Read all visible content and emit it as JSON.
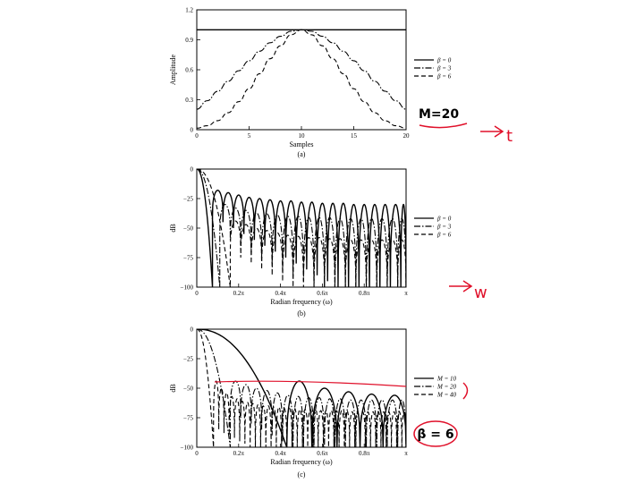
{
  "chart_data": [
    {
      "type": "line",
      "caption": "(a)",
      "xlabel": "Samples",
      "ylabel": "Amplitude",
      "xlim": [
        0,
        20
      ],
      "ylim": [
        0,
        1.2
      ],
      "xticks": [
        "0",
        "5",
        "10",
        "15",
        "20"
      ],
      "yticks": [
        "0",
        "0.3",
        "0.6",
        "0.9",
        "1.2"
      ],
      "legend_position": "right",
      "series": [
        {
          "name": "β = 0",
          "style": "solid",
          "x": [
            0,
            1,
            2,
            3,
            4,
            5,
            6,
            7,
            8,
            9,
            10,
            11,
            12,
            13,
            14,
            15,
            16,
            17,
            18,
            19,
            20
          ],
          "y": [
            1,
            1,
            1,
            1,
            1,
            1,
            1,
            1,
            1,
            1,
            1,
            1,
            1,
            1,
            1,
            1,
            1,
            1,
            1,
            1,
            1
          ]
        },
        {
          "name": "β = 3",
          "style": "dashdot",
          "x": [
            0,
            1,
            2,
            3,
            4,
            5,
            6,
            7,
            8,
            9,
            10,
            11,
            12,
            13,
            14,
            15,
            16,
            17,
            18,
            19,
            20
          ],
          "y": [
            0.205,
            0.29,
            0.385,
            0.485,
            0.59,
            0.69,
            0.785,
            0.87,
            0.935,
            0.985,
            1,
            0.985,
            0.935,
            0.87,
            0.785,
            0.69,
            0.59,
            0.485,
            0.385,
            0.29,
            0.205
          ]
        },
        {
          "name": "β = 6",
          "style": "dashed",
          "x": [
            0,
            1,
            2,
            3,
            4,
            5,
            6,
            7,
            8,
            9,
            10,
            11,
            12,
            13,
            14,
            15,
            16,
            17,
            18,
            19,
            20
          ],
          "y": [
            0.015,
            0.04,
            0.09,
            0.17,
            0.28,
            0.41,
            0.56,
            0.71,
            0.84,
            0.95,
            1,
            0.95,
            0.84,
            0.71,
            0.56,
            0.41,
            0.28,
            0.17,
            0.09,
            0.04,
            0.015
          ]
        }
      ]
    },
    {
      "type": "line",
      "caption": "(b)",
      "xlabel": "Radian frequency (ω)",
      "ylabel": "dB",
      "xlim": [
        0,
        1
      ],
      "ylim": [
        -100,
        0
      ],
      "xticks": [
        "0",
        "0.2π",
        "0.4π",
        "0.6π",
        "0.8π",
        "π"
      ],
      "yticks": [
        "0",
        "−25",
        "−50",
        "−75",
        "−100"
      ],
      "legend_position": "right",
      "series": [
        {
          "name": "β = 0",
          "style": "solid",
          "lobes": [
            [
              0,
              0.075,
              -100,
              -100
            ],
            [
              0.075,
              0.125,
              -18,
              -40
            ],
            [
              0.125,
              0.175,
              -20,
              -45
            ],
            [
              0.175,
              0.225,
              -22,
              -50
            ],
            [
              0.225,
              0.275,
              -24,
              -55
            ],
            [
              0.275,
              0.325,
              -25,
              -60
            ],
            [
              0.325,
              0.375,
              -26,
              -65
            ],
            [
              0.375,
              0.425,
              -27,
              -70
            ],
            [
              0.425,
              0.475,
              -27,
              -75
            ],
            [
              0.475,
              0.525,
              -28,
              -80
            ],
            [
              0.525,
              0.575,
              -28,
              -85
            ],
            [
              0.575,
              0.625,
              -29,
              -90
            ],
            [
              0.625,
              0.675,
              -29,
              -95
            ],
            [
              0.675,
              0.725,
              -29,
              -100
            ],
            [
              0.725,
              0.775,
              -30,
              -100
            ],
            [
              0.775,
              0.825,
              -30,
              -100
            ],
            [
              0.825,
              0.875,
              -30,
              -100
            ],
            [
              0.875,
              0.925,
              -30,
              -100
            ],
            [
              0.925,
              0.975,
              -30,
              -100
            ],
            [
              0.975,
              1,
              -30,
              -100
            ]
          ],
          "main_to": 0.075
        },
        {
          "name": "β = 3",
          "style": "dashdot",
          "lobes": [
            [
              0,
              0.11,
              -100,
              -100
            ],
            [
              0.11,
              0.16,
              -30,
              -55
            ],
            [
              0.16,
              0.21,
              -33,
              -60
            ],
            [
              0.21,
              0.26,
              -35,
              -65
            ],
            [
              0.26,
              0.31,
              -37,
              -70
            ],
            [
              0.31,
              0.36,
              -38,
              -75
            ],
            [
              0.36,
              0.41,
              -39,
              -80
            ],
            [
              0.41,
              0.46,
              -40,
              -85
            ],
            [
              0.46,
              0.51,
              -40,
              -90
            ],
            [
              0.51,
              0.56,
              -41,
              -95
            ],
            [
              0.56,
              0.61,
              -41,
              -100
            ],
            [
              0.61,
              0.66,
              -41,
              -100
            ],
            [
              0.66,
              0.71,
              -42,
              -100
            ],
            [
              0.71,
              0.76,
              -42,
              -100
            ],
            [
              0.76,
              0.81,
              -42,
              -100
            ],
            [
              0.81,
              0.86,
              -42,
              -100
            ],
            [
              0.86,
              0.91,
              -42,
              -100
            ],
            [
              0.91,
              0.96,
              -42,
              -100
            ],
            [
              0.96,
              1,
              -42,
              -100
            ]
          ],
          "main_to": 0.11
        },
        {
          "name": "β = 6",
          "style": "dashed",
          "lobes": [
            [
              0,
              0.16,
              -100,
              -100
            ],
            [
              0.16,
              0.21,
              -44,
              -70
            ],
            [
              0.21,
              0.26,
              -47,
              -75
            ],
            [
              0.26,
              0.31,
              -50,
              -80
            ],
            [
              0.31,
              0.36,
              -52,
              -85
            ],
            [
              0.36,
              0.41,
              -54,
              -90
            ],
            [
              0.41,
              0.46,
              -56,
              -95
            ],
            [
              0.46,
              0.51,
              -57,
              -100
            ],
            [
              0.51,
              0.56,
              -58,
              -100
            ],
            [
              0.56,
              0.61,
              -58,
              -100
            ],
            [
              0.61,
              0.66,
              -59,
              -100
            ],
            [
              0.66,
              0.71,
              -59,
              -100
            ],
            [
              0.71,
              0.76,
              -60,
              -100
            ],
            [
              0.76,
              0.81,
              -60,
              -100
            ],
            [
              0.81,
              0.86,
              -60,
              -100
            ],
            [
              0.86,
              0.91,
              -60,
              -100
            ],
            [
              0.91,
              0.96,
              -60,
              -100
            ],
            [
              0.96,
              1,
              -60,
              -100
            ]
          ],
          "main_to": 0.16
        }
      ]
    },
    {
      "type": "line",
      "caption": "(c)",
      "xlabel": "Radian frequency (ω)",
      "ylabel": "dB",
      "xlim": [
        0,
        1
      ],
      "ylim": [
        -100,
        0
      ],
      "xticks": [
        "0",
        "0.2π",
        "0.4π",
        "0.6π",
        "0.8π",
        "π"
      ],
      "yticks": [
        "0",
        "−25",
        "−50",
        "−75",
        "−100"
      ],
      "legend_position": "right",
      "series": [
        {
          "name": "M = 10",
          "style": "solid",
          "lobes": [
            [
              0,
              0.43,
              -100,
              -100
            ],
            [
              0.43,
              0.55,
              -44,
              -100
            ],
            [
              0.55,
              0.67,
              -50,
              -100
            ],
            [
              0.67,
              0.78,
              -53,
              -100
            ],
            [
              0.78,
              0.89,
              -55,
              -100
            ],
            [
              0.89,
              1,
              -56,
              -100
            ]
          ],
          "main_to": 0.43
        },
        {
          "name": "M = 20",
          "style": "dashdot",
          "lobes": [
            [
              0,
              0.16,
              -100,
              -100
            ],
            [
              0.16,
              0.21,
              -44,
              -70
            ],
            [
              0.21,
              0.26,
              -47,
              -75
            ],
            [
              0.26,
              0.31,
              -50,
              -80
            ],
            [
              0.31,
              0.36,
              -52,
              -85
            ],
            [
              0.36,
              0.41,
              -54,
              -90
            ],
            [
              0.41,
              0.46,
              -56,
              -95
            ],
            [
              0.46,
              0.51,
              -57,
              -100
            ],
            [
              0.51,
              0.56,
              -58,
              -100
            ],
            [
              0.56,
              0.61,
              -58,
              -100
            ],
            [
              0.61,
              0.66,
              -59,
              -100
            ],
            [
              0.66,
              0.71,
              -59,
              -100
            ],
            [
              0.71,
              0.76,
              -60,
              -100
            ],
            [
              0.76,
              0.81,
              -60,
              -100
            ],
            [
              0.81,
              0.86,
              -60,
              -100
            ],
            [
              0.86,
              0.91,
              -60,
              -100
            ],
            [
              0.91,
              0.96,
              -60,
              -100
            ],
            [
              0.96,
              1,
              -60,
              -100
            ]
          ],
          "main_to": 0.16
        },
        {
          "name": "M = 40",
          "style": "dashed",
          "lobes": [
            [
              0,
              0.08,
              -100,
              -100
            ],
            [
              0.08,
              0.105,
              -44,
              -80
            ],
            [
              0.105,
              0.13,
              -50,
              -85
            ],
            [
              0.13,
              0.155,
              -54,
              -88
            ],
            [
              0.155,
              0.18,
              -57,
              -90
            ],
            [
              0.18,
              0.205,
              -59,
              -92
            ],
            [
              0.205,
              0.23,
              -61,
              -95
            ],
            [
              0.23,
              0.255,
              -62,
              -97
            ],
            [
              0.255,
              0.28,
              -63,
              -100
            ],
            [
              0.28,
              0.305,
              -64,
              -100
            ],
            [
              0.305,
              0.33,
              -65,
              -100
            ],
            [
              0.33,
              0.355,
              -65,
              -100
            ],
            [
              0.355,
              0.38,
              -66,
              -100
            ],
            [
              0.38,
              0.405,
              -66,
              -100
            ],
            [
              0.405,
              0.43,
              -67,
              -100
            ],
            [
              0.43,
              0.455,
              -67,
              -100
            ],
            [
              0.455,
              0.48,
              -67,
              -100
            ],
            [
              0.48,
              0.505,
              -68,
              -100
            ],
            [
              0.505,
              0.53,
              -68,
              -100
            ],
            [
              0.53,
              0.555,
              -68,
              -100
            ],
            [
              0.555,
              0.58,
              -68,
              -100
            ],
            [
              0.58,
              0.605,
              -69,
              -100
            ],
            [
              0.605,
              0.63,
              -69,
              -100
            ],
            [
              0.63,
              0.655,
              -69,
              -100
            ],
            [
              0.655,
              0.68,
              -69,
              -100
            ],
            [
              0.68,
              0.705,
              -69,
              -100
            ],
            [
              0.705,
              0.73,
              -69,
              -100
            ],
            [
              0.73,
              0.755,
              -70,
              -100
            ],
            [
              0.755,
              0.78,
              -70,
              -100
            ],
            [
              0.78,
              0.805,
              -70,
              -100
            ],
            [
              0.805,
              0.83,
              -70,
              -100
            ],
            [
              0.83,
              0.855,
              -70,
              -100
            ],
            [
              0.855,
              0.88,
              -70,
              -100
            ],
            [
              0.88,
              0.905,
              -70,
              -100
            ],
            [
              0.905,
              0.93,
              -70,
              -100
            ],
            [
              0.93,
              0.955,
              -70,
              -100
            ],
            [
              0.955,
              0.98,
              -70,
              -100
            ],
            [
              0.98,
              1,
              -70,
              -100
            ]
          ],
          "main_to": 0.08
        }
      ]
    }
  ],
  "annotations": {
    "m_label": "M=20",
    "beta_label": "β = 6",
    "t_label": "t",
    "w_label": "w",
    "ink_color": "#e0102a"
  }
}
